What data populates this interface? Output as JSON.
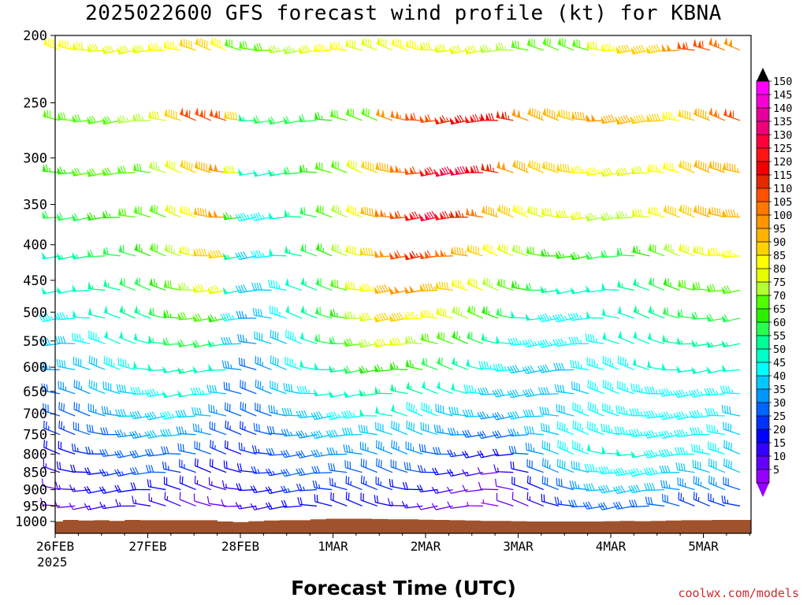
{
  "chart_data": {
    "type": "wind-barbs",
    "title": "2025022600 GFS forecast wind profile (kt) for KBNA",
    "xlabel": "Forecast Time (UTC)",
    "credit": "coolwx.com/models",
    "x_tick_labels": [
      "26FEB",
      "27FEB",
      "28FEB",
      "1MAR",
      "2MAR",
      "3MAR",
      "4MAR",
      "5MAR"
    ],
    "x_year_label": "2025",
    "x_range_days": [
      0,
      7.4
    ],
    "y_tick_labels": [
      "200",
      "250",
      "300",
      "350",
      "400",
      "450",
      "500",
      "550",
      "600",
      "650",
      "700",
      "750",
      "800",
      "850",
      "900",
      "950",
      "1000"
    ],
    "y_unit": "hPa",
    "y_scale": "log",
    "y_range": [
      200,
      1040
    ],
    "pressure_levels": [
      210,
      265,
      315,
      365,
      415,
      465,
      510,
      555,
      605,
      655,
      705,
      750,
      800,
      850,
      900,
      950,
      1000
    ],
    "time_step_hours": 6,
    "colorbar": {
      "labels": [
        "150",
        "145",
        "140",
        "135",
        "130",
        "125",
        "120",
        "115",
        "110",
        "105",
        "100",
        "95",
        "90",
        "85",
        "80",
        "75",
        "70",
        "65",
        "60",
        "55",
        "50",
        "45",
        "40",
        "35",
        "30",
        "25",
        "20",
        "15",
        "10",
        "5"
      ],
      "colors": [
        "#ff00ff",
        "#f700d2",
        "#e6009b",
        "#f00078",
        "#ff003c",
        "#ff1414",
        "#f00000",
        "#e62800",
        "#ff5000",
        "#ff7800",
        "#ff9600",
        "#ffb400",
        "#ffd200",
        "#ffff00",
        "#e6ff00",
        "#b4ff32",
        "#50ff00",
        "#28f000",
        "#28ff50",
        "#00ff96",
        "#00ffc8",
        "#00ffff",
        "#00c8ff",
        "#0096ff",
        "#0064ff",
        "#0032ff",
        "#0000ff",
        "#3200ff",
        "#6400ff",
        "#9600ff"
      ]
    },
    "wind_key_speeds": [
      {
        "level": 210,
        "speeds": [
          84,
          84,
          82,
          80,
          80,
          80,
          82,
          84,
          86,
          88,
          88,
          86,
          72,
          70,
          72,
          74,
          76,
          80,
          84,
          84,
          82,
          80,
          82,
          84,
          84,
          82,
          80,
          80,
          78,
          76,
          74,
          72,
          72,
          70,
          70,
          72,
          80,
          84,
          88,
          88,
          90,
          100,
          108,
          108,
          104,
          102
        ]
      },
      {
        "level": 265,
        "speeds": [
          70,
          68,
          68,
          70,
          72,
          74,
          76,
          80,
          92,
          108,
          112,
          110,
          88,
          56,
          62,
          58,
          62,
          62,
          64,
          68,
          70,
          72,
          100,
          104,
          108,
          112,
          116,
          118,
          124,
          122,
          116,
          100,
          96,
          94,
          92,
          96,
          102,
          96,
          94,
          92,
          90,
          86,
          90,
          96,
          104,
          110
        ]
      },
      {
        "level": 315,
        "speeds": [
          64,
          66,
          68,
          70,
          72,
          70,
          72,
          76,
          80,
          88,
          96,
          100,
          82,
          48,
          50,
          54,
          58,
          64,
          68,
          72,
          80,
          88,
          96,
          104,
          112,
          124,
          132,
          128,
          122,
          114,
          102,
          94,
          88,
          90,
          88,
          86,
          84,
          80,
          80,
          82,
          84,
          86,
          90,
          94,
          96,
          96
        ]
      },
      {
        "level": 365,
        "speeds": [
          58,
          60,
          62,
          64,
          66,
          68,
          70,
          72,
          78,
          86,
          96,
          100,
          64,
          44,
          46,
          50,
          56,
          62,
          68,
          76,
          84,
          94,
          104,
          112,
          124,
          132,
          126,
          116,
          104,
          94,
          88,
          86,
          82,
          80,
          80,
          78,
          76,
          74,
          76,
          80,
          84,
          88,
          92,
          96,
          96,
          94
        ]
      },
      {
        "level": 415,
        "speeds": [
          52,
          54,
          56,
          58,
          60,
          62,
          64,
          68,
          74,
          82,
          90,
          92,
          56,
          40,
          44,
          48,
          54,
          60,
          66,
          74,
          82,
          92,
          100,
          108,
          116,
          112,
          104,
          96,
          88,
          84,
          80,
          74,
          70,
          66,
          64,
          64,
          62,
          60,
          62,
          66,
          70,
          74,
          78,
          82,
          84,
          84
        ]
      },
      {
        "level": 465,
        "speeds": [
          48,
          50,
          52,
          54,
          56,
          58,
          60,
          64,
          70,
          76,
          82,
          80,
          52,
          38,
          42,
          46,
          50,
          56,
          62,
          70,
          78,
          86,
          94,
          100,
          98,
          94,
          88,
          84,
          80,
          76,
          70,
          64,
          58,
          54,
          52,
          52,
          52,
          52,
          54,
          56,
          60,
          64,
          68,
          72,
          72,
          70
        ]
      },
      {
        "level": 510,
        "speeds": [
          44,
          46,
          48,
          50,
          52,
          54,
          56,
          60,
          64,
          68,
          70,
          64,
          46,
          36,
          40,
          44,
          48,
          54,
          60,
          66,
          74,
          82,
          88,
          88,
          86,
          84,
          80,
          76,
          70,
          64,
          58,
          52,
          48,
          46,
          46,
          46,
          48,
          50,
          52,
          54,
          56,
          58,
          60,
          62,
          62,
          60
        ]
      },
      {
        "level": 555,
        "speeds": [
          40,
          42,
          44,
          46,
          48,
          50,
          52,
          54,
          58,
          60,
          60,
          56,
          40,
          34,
          38,
          42,
          46,
          52,
          58,
          62,
          68,
          74,
          78,
          78,
          76,
          72,
          68,
          64,
          58,
          54,
          50,
          46,
          44,
          44,
          44,
          44,
          46,
          48,
          50,
          52,
          52,
          54,
          54,
          56,
          56,
          54
        ]
      },
      {
        "level": 605,
        "speeds": [
          36,
          38,
          40,
          42,
          44,
          46,
          48,
          50,
          52,
          54,
          52,
          48,
          36,
          32,
          36,
          40,
          44,
          48,
          52,
          56,
          60,
          64,
          66,
          66,
          64,
          60,
          58,
          54,
          50,
          46,
          44,
          42,
          42,
          42,
          42,
          44,
          44,
          46,
          46,
          48,
          48,
          48,
          50,
          50,
          50,
          48
        ]
      },
      {
        "level": 655,
        "speeds": [
          32,
          34,
          36,
          38,
          40,
          42,
          44,
          46,
          48,
          48,
          46,
          42,
          32,
          30,
          34,
          38,
          42,
          44,
          48,
          50,
          52,
          54,
          56,
          56,
          54,
          52,
          50,
          48,
          44,
          42,
          40,
          40,
          40,
          40,
          42,
          42,
          44,
          44,
          44,
          46,
          46,
          46,
          46,
          46,
          46,
          44
        ]
      },
      {
        "level": 705,
        "speeds": [
          28,
          30,
          32,
          34,
          36,
          38,
          40,
          42,
          44,
          42,
          40,
          36,
          28,
          28,
          32,
          36,
          38,
          40,
          42,
          44,
          46,
          48,
          48,
          48,
          46,
          44,
          42,
          40,
          38,
          36,
          36,
          38,
          40,
          42,
          42,
          44,
          44,
          44,
          44,
          44,
          44,
          44,
          44,
          44,
          44,
          42
        ]
      },
      {
        "level": 750,
        "speeds": [
          24,
          26,
          28,
          30,
          32,
          34,
          36,
          38,
          38,
          36,
          34,
          30,
          24,
          26,
          30,
          32,
          34,
          36,
          38,
          40,
          40,
          42,
          42,
          42,
          40,
          38,
          36,
          34,
          32,
          30,
          30,
          34,
          38,
          42,
          44,
          46,
          46,
          46,
          46,
          46,
          46,
          46,
          44,
          44,
          44,
          42
        ]
      },
      {
        "level": 800,
        "speeds": [
          20,
          22,
          24,
          26,
          28,
          30,
          32,
          32,
          32,
          30,
          28,
          24,
          20,
          24,
          26,
          28,
          30,
          32,
          34,
          36,
          36,
          36,
          36,
          36,
          34,
          32,
          30,
          26,
          22,
          20,
          22,
          28,
          34,
          40,
          44,
          46,
          48,
          48,
          48,
          48,
          46,
          46,
          44,
          44,
          44,
          42
        ]
      },
      {
        "level": 850,
        "speeds": [
          16,
          18,
          20,
          22,
          24,
          26,
          28,
          28,
          26,
          24,
          22,
          20,
          18,
          22,
          24,
          26,
          28,
          28,
          30,
          30,
          30,
          30,
          30,
          30,
          28,
          26,
          22,
          18,
          14,
          12,
          16,
          22,
          28,
          34,
          38,
          42,
          44,
          46,
          46,
          46,
          44,
          42,
          40,
          40,
          40,
          38
        ]
      },
      {
        "level": 900,
        "speeds": [
          12,
          14,
          16,
          18,
          20,
          22,
          22,
          22,
          20,
          18,
          16,
          16,
          16,
          18,
          20,
          22,
          24,
          24,
          24,
          24,
          24,
          24,
          24,
          22,
          20,
          18,
          14,
          10,
          8,
          8,
          12,
          18,
          22,
          28,
          32,
          36,
          38,
          40,
          40,
          40,
          38,
          36,
          34,
          34,
          34,
          32
        ]
      },
      {
        "level": 950,
        "speeds": [
          8,
          10,
          12,
          14,
          16,
          16,
          16,
          16,
          14,
          12,
          12,
          12,
          12,
          14,
          16,
          18,
          18,
          18,
          18,
          18,
          18,
          18,
          18,
          16,
          14,
          12,
          10,
          8,
          6,
          6,
          8,
          12,
          16,
          20,
          24,
          28,
          30,
          32,
          32,
          32,
          30,
          28,
          26,
          26,
          26,
          24
        ]
      },
      {
        "level": 1000,
        "speeds": [
          0,
          0,
          0,
          0,
          0,
          0,
          0,
          0,
          0,
          0,
          0,
          0,
          0,
          0,
          0,
          0,
          0,
          0,
          0,
          0,
          0,
          0,
          0,
          0,
          0,
          0,
          0,
          0,
          0,
          0,
          0,
          0,
          0,
          0,
          10,
          14,
          18,
          22,
          24,
          24,
          22,
          20,
          18,
          18,
          18,
          16
        ]
      }
    ],
    "surface_pressure": [
      1000,
      995,
      997,
      996,
      998,
      995,
      996,
      996,
      996,
      996,
      996,
      1000,
      1002,
      999,
      997,
      996,
      996,
      993,
      991,
      991,
      991,
      992,
      993,
      993,
      994,
      995,
      996,
      997,
      998,
      998,
      999,
      1000,
      1000,
      1000,
      1000,
      1000,
      999,
      998,
      999,
      998,
      997,
      996,
      996,
      995,
      995,
      995
    ]
  }
}
